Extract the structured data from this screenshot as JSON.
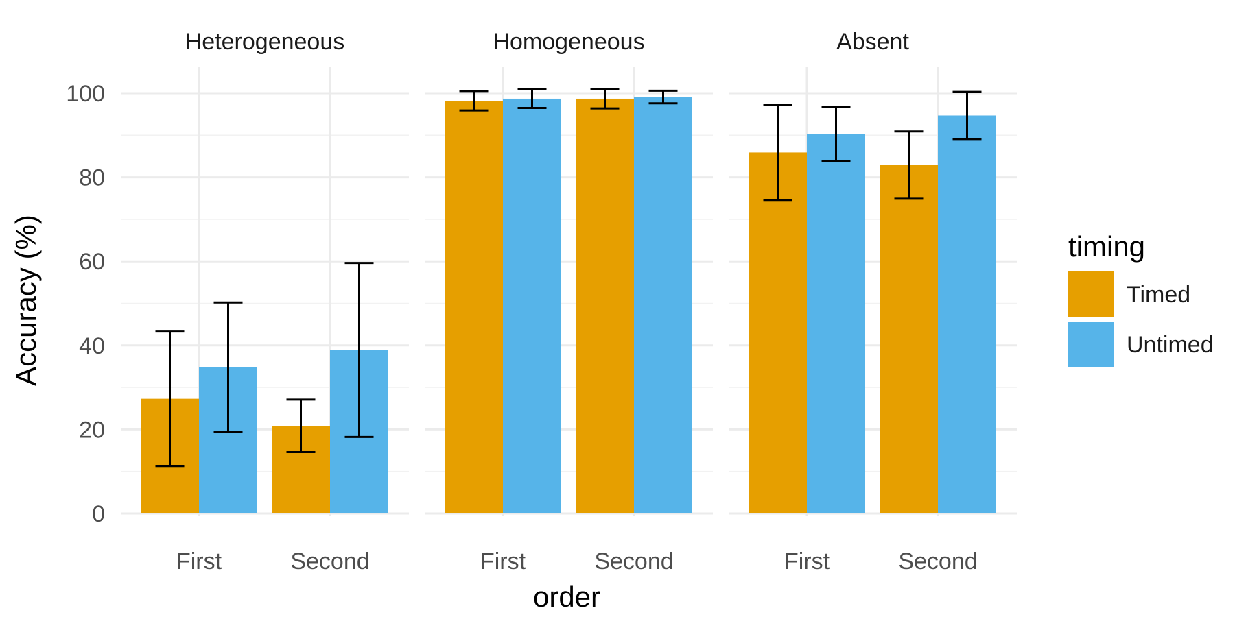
{
  "chart_data": {
    "type": "bar",
    "facets": [
      "Heterogeneous",
      "Homogeneous",
      "Absent"
    ],
    "categories": [
      "First",
      "Second"
    ],
    "xlabel": "order",
    "ylabel": "Accuracy (%)",
    "ylim": [
      0,
      105
    ],
    "yticks": [
      0,
      20,
      40,
      60,
      80,
      100
    ],
    "grid": true,
    "legend": {
      "title": "timing",
      "position": "right",
      "entries": [
        "Timed",
        "Untimed"
      ]
    },
    "colors": {
      "Timed": "#E69F00",
      "Untimed": "#56B4E9"
    },
    "series": [
      {
        "name": "Timed",
        "panels": [
          {
            "values": [
              27.3,
              20.8
            ],
            "lower": [
              11.3,
              14.6
            ],
            "upper": [
              43.3,
              27.1
            ]
          },
          {
            "values": [
              98.2,
              98.7
            ],
            "lower": [
              95.9,
              96.4
            ],
            "upper": [
              100.5,
              101.0
            ]
          },
          {
            "values": [
              85.9,
              82.9
            ],
            "lower": [
              74.6,
              74.9
            ],
            "upper": [
              97.2,
              90.9
            ]
          }
        ]
      },
      {
        "name": "Untimed",
        "panels": [
          {
            "values": [
              34.8,
              38.9
            ],
            "lower": [
              19.4,
              18.2
            ],
            "upper": [
              50.2,
              59.6
            ]
          },
          {
            "values": [
              98.7,
              99.1
            ],
            "lower": [
              96.5,
              97.6
            ],
            "upper": [
              100.9,
              100.6
            ]
          },
          {
            "values": [
              90.3,
              94.7
            ],
            "lower": [
              83.9,
              89.1
            ],
            "upper": [
              96.7,
              100.3
            ]
          }
        ]
      }
    ]
  }
}
